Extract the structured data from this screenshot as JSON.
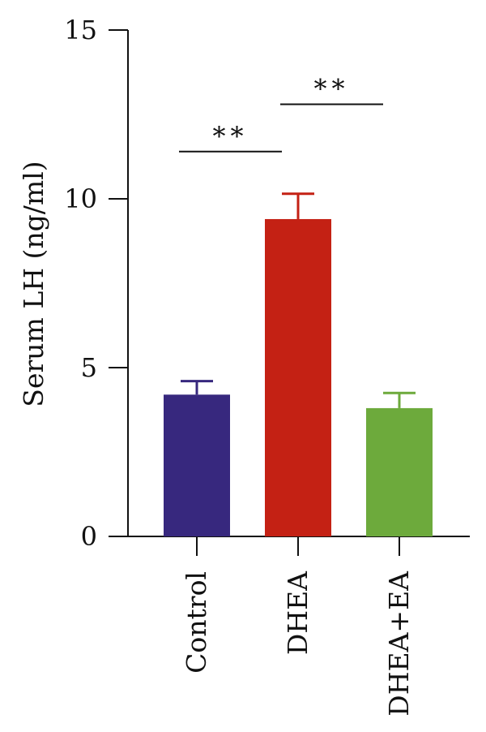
{
  "chart_data": {
    "type": "bar",
    "title": "",
    "xlabel": "",
    "ylabel": "Serum LH (ng/ml)",
    "ylim": [
      0,
      15
    ],
    "yticks": [
      0,
      5,
      10,
      15
    ],
    "ytick_labels": [
      "0",
      "5",
      "10",
      "15"
    ],
    "grid": false,
    "legend": "none",
    "categories": [
      "Control",
      "DHEA",
      "DHEA+EA"
    ],
    "series": [
      {
        "values": [
          4.2,
          9.4,
          3.8
        ],
        "errors": [
          0.4,
          0.75,
          0.45
        ],
        "colors": [
          "#37287e",
          "#c42114",
          "#6daa3c"
        ]
      }
    ],
    "annotations": [
      {
        "label": "**",
        "from": "Control",
        "to": "DHEA",
        "y": 11.4
      },
      {
        "label": "**",
        "from": "DHEA",
        "to": "DHEA+EA",
        "y": 12.8
      }
    ]
  }
}
